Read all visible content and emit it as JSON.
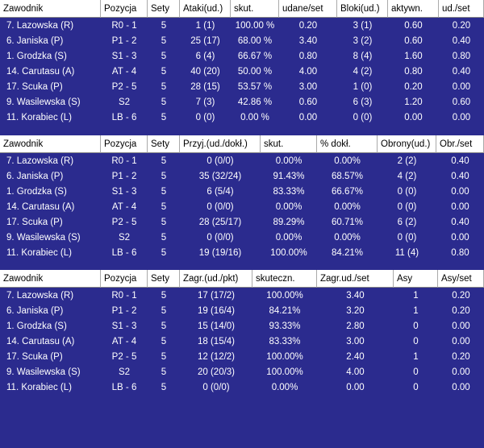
{
  "tables": [
    {
      "columns": [
        "Zawodnik",
        "Pozycja",
        "Sety",
        "Ataki(ud.)",
        "skut.",
        "udane/set",
        "Bloki(ud.)",
        "aktywn.",
        "ud./set"
      ],
      "rows": [
        [
          "7. Lazowska (R)",
          "R0 - 1",
          "5",
          "1 (1)",
          "100.00 %",
          "0.20",
          "3 (1)",
          "0.60",
          "0.20"
        ],
        [
          "6. Janiska (P)",
          "P1 - 2",
          "5",
          "25 (17)",
          "68.00 %",
          "3.40",
          "3 (2)",
          "0.60",
          "0.40"
        ],
        [
          "1. Grodzka (S)",
          "S1 - 3",
          "5",
          "6 (4)",
          "66.67 %",
          "0.80",
          "8 (4)",
          "1.60",
          "0.80"
        ],
        [
          "14. Carutasu (A)",
          "AT - 4",
          "5",
          "40 (20)",
          "50.00 %",
          "4.00",
          "4 (2)",
          "0.80",
          "0.40"
        ],
        [
          "17. Scuka (P)",
          "P2 - 5",
          "5",
          "28 (15)",
          "53.57 %",
          "3.00",
          "1 (0)",
          "0.20",
          "0.00"
        ],
        [
          "9. Wasilewska (S)",
          "S2",
          "5",
          "7 (3)",
          "42.86 %",
          "0.60",
          "6 (3)",
          "1.20",
          "0.60"
        ],
        [
          "11. Korabiec (L)",
          "LB - 6",
          "5",
          "0 (0)",
          "0.00 %",
          "0.00",
          "0 (0)",
          "0.00",
          "0.00"
        ]
      ]
    },
    {
      "columns": [
        "Zawodnik",
        "Pozycja",
        "Sety",
        "Przyj.(ud./dokł.)",
        "skut.",
        "% dokł.",
        "Obrony(ud.)",
        "Obr./set"
      ],
      "rows": [
        [
          "7. Lazowska (R)",
          "R0 - 1",
          "5",
          "0 (0/0)",
          "0.00%",
          "0.00%",
          "2 (2)",
          "0.40"
        ],
        [
          "6. Janiska (P)",
          "P1 - 2",
          "5",
          "35 (32/24)",
          "91.43%",
          "68.57%",
          "4 (2)",
          "0.40"
        ],
        [
          "1. Grodzka (S)",
          "S1 - 3",
          "5",
          "6 (5/4)",
          "83.33%",
          "66.67%",
          "0 (0)",
          "0.00"
        ],
        [
          "14. Carutasu (A)",
          "AT - 4",
          "5",
          "0 (0/0)",
          "0.00%",
          "0.00%",
          "0 (0)",
          "0.00"
        ],
        [
          "17. Scuka (P)",
          "P2 - 5",
          "5",
          "28 (25/17)",
          "89.29%",
          "60.71%",
          "6 (2)",
          "0.40"
        ],
        [
          "9. Wasilewska (S)",
          "S2",
          "5",
          "0 (0/0)",
          "0.00%",
          "0.00%",
          "0 (0)",
          "0.00"
        ],
        [
          "11. Korabiec (L)",
          "LB - 6",
          "5",
          "19 (19/16)",
          "100.00%",
          "84.21%",
          "11 (4)",
          "0.80"
        ]
      ]
    },
    {
      "columns": [
        "Zawodnik",
        "Pozycja",
        "Sety",
        "Zagr.(ud./pkt)",
        "skuteczn.",
        "Zagr.ud./set",
        "Asy",
        "Asy/set"
      ],
      "rows": [
        [
          "7. Lazowska (R)",
          "R0 - 1",
          "5",
          "17 (17/2)",
          "100.00%",
          "3.40",
          "1",
          "0.20"
        ],
        [
          "6. Janiska (P)",
          "P1 - 2",
          "5",
          "19 (16/4)",
          "84.21%",
          "3.20",
          "1",
          "0.20"
        ],
        [
          "1. Grodzka (S)",
          "S1 - 3",
          "5",
          "15 (14/0)",
          "93.33%",
          "2.80",
          "0",
          "0.00"
        ],
        [
          "14. Carutasu (A)",
          "AT - 4",
          "5",
          "18 (15/4)",
          "83.33%",
          "3.00",
          "0",
          "0.00"
        ],
        [
          "17. Scuka (P)",
          "P2 - 5",
          "5",
          "12 (12/2)",
          "100.00%",
          "2.40",
          "1",
          "0.20"
        ],
        [
          "9. Wasilewska (S)",
          "S2",
          "5",
          "20 (20/3)",
          "100.00%",
          "4.00",
          "0",
          "0.00"
        ],
        [
          "11. Korabiec (L)",
          "LB - 6",
          "5",
          "0 (0/0)",
          "0.00%",
          "0.00",
          "0",
          "0.00"
        ]
      ]
    }
  ]
}
